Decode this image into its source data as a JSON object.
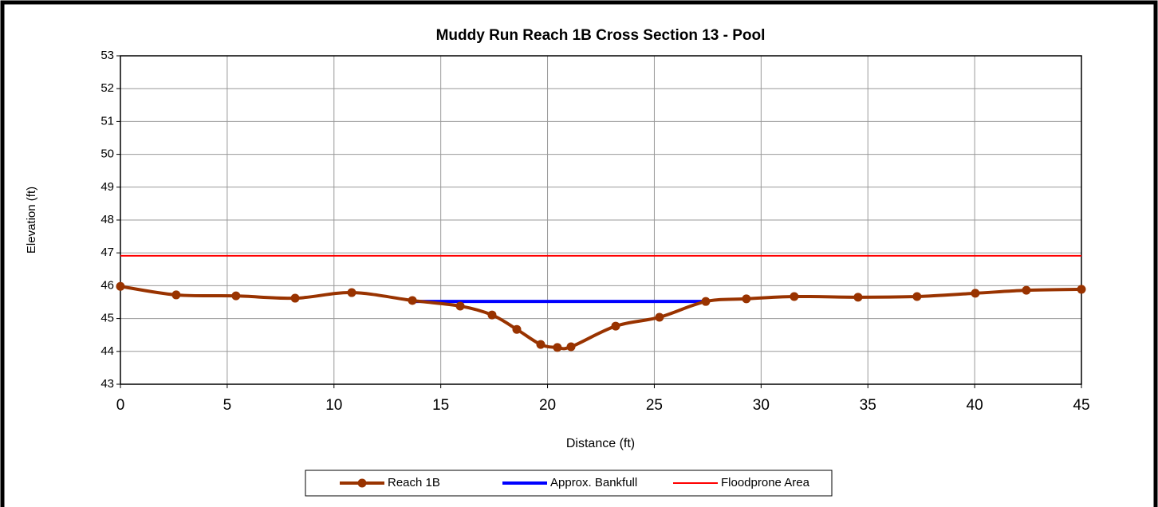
{
  "chart_data": {
    "type": "line",
    "title": "Muddy Run Reach 1B Cross Section 13 - Pool",
    "x_label": "Distance (ft)",
    "y_label": "Elevation (ft)",
    "xlim": [
      0,
      45
    ],
    "xticks": [
      0,
      5,
      10,
      15,
      20,
      25,
      30,
      35,
      40,
      45
    ],
    "ylim": [
      43,
      53
    ],
    "yticks": [
      43,
      44,
      45,
      46,
      47,
      48,
      49,
      50,
      51,
      52,
      53
    ],
    "grid": true,
    "legend": "bottom",
    "series": [
      {
        "name": "Reach 1B",
        "color": "#993300",
        "markers": true,
        "smooth": true,
        "x": [
          0,
          2.61,
          5.41,
          8.18,
          10.83,
          13.67,
          15.91,
          17.4,
          18.56,
          19.68,
          20.46,
          21.1,
          23.19,
          25.24,
          27.41,
          29.31,
          31.55,
          34.54,
          37.3,
          40.03,
          42.42,
          45
        ],
        "values": [
          45.98,
          45.72,
          45.69,
          45.62,
          45.79,
          45.55,
          45.38,
          45.11,
          44.67,
          44.21,
          44.12,
          44.14,
          44.77,
          45.04,
          45.52,
          45.6,
          45.67,
          45.65,
          45.67,
          45.77,
          45.86,
          45.89
        ]
      },
      {
        "name": "Approx. Bankfull",
        "color": "#0000ff",
        "markers": false,
        "smooth": false,
        "x": [
          13.67,
          27.41
        ],
        "values": [
          45.52,
          45.52
        ]
      },
      {
        "name": "Floodprone Area",
        "color": "#ff0000",
        "markers": false,
        "smooth": false,
        "x": [
          0,
          45
        ],
        "values": [
          46.91,
          46.91
        ]
      }
    ]
  }
}
